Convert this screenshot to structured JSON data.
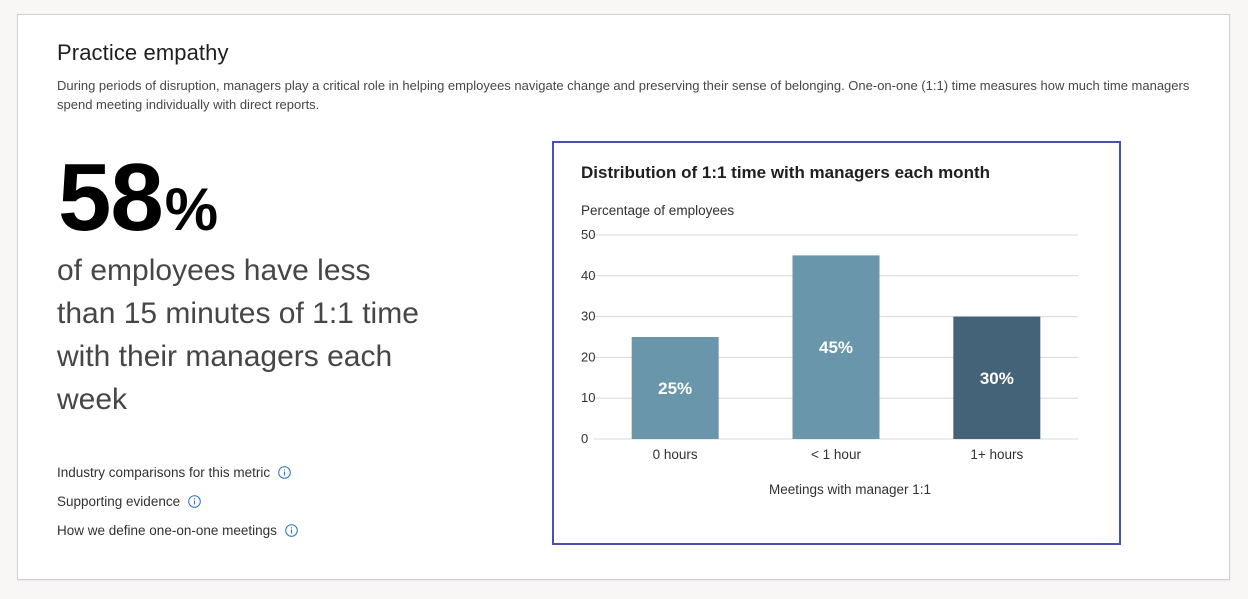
{
  "header": {
    "title": "Practice empathy",
    "description": "During periods of disruption, managers play a critical role in helping employees navigate change and preserving their sense of belonging. One-on-one (1:1) time measures how much time managers spend meeting individually with direct reports."
  },
  "highlight": {
    "value": "58",
    "unit": "%",
    "statement": "of employees have less than 15 minutes of 1:1 time with their managers each week"
  },
  "links": [
    {
      "label": "Industry comparisons for this metric",
      "icon": "info-icon"
    },
    {
      "label": "Supporting evidence",
      "icon": "info-icon"
    },
    {
      "label": "How we define one-on-one meetings",
      "icon": "info-icon"
    }
  ],
  "colors": {
    "accent_border": "#4a4fb4",
    "bar_light": "#6996aa",
    "bar_dark": "#456378",
    "info_icon": "#2b6fc4"
  },
  "chart_data": {
    "type": "bar",
    "title": "Distribution of 1:1 time with managers each month",
    "ylabel": "Percentage of employees",
    "xlabel": "Meetings with manager 1:1",
    "categories": [
      "0 hours",
      "< 1 hour",
      "1+ hours"
    ],
    "values": [
      25,
      45,
      30
    ],
    "data_labels": [
      "25%",
      "45%",
      "30%"
    ],
    "bar_colors": [
      "#6996aa",
      "#6996aa",
      "#456378"
    ],
    "ylim": [
      0,
      50
    ],
    "yticks": [
      0,
      10,
      20,
      30,
      40,
      50
    ],
    "grid": true,
    "legend": "none"
  }
}
